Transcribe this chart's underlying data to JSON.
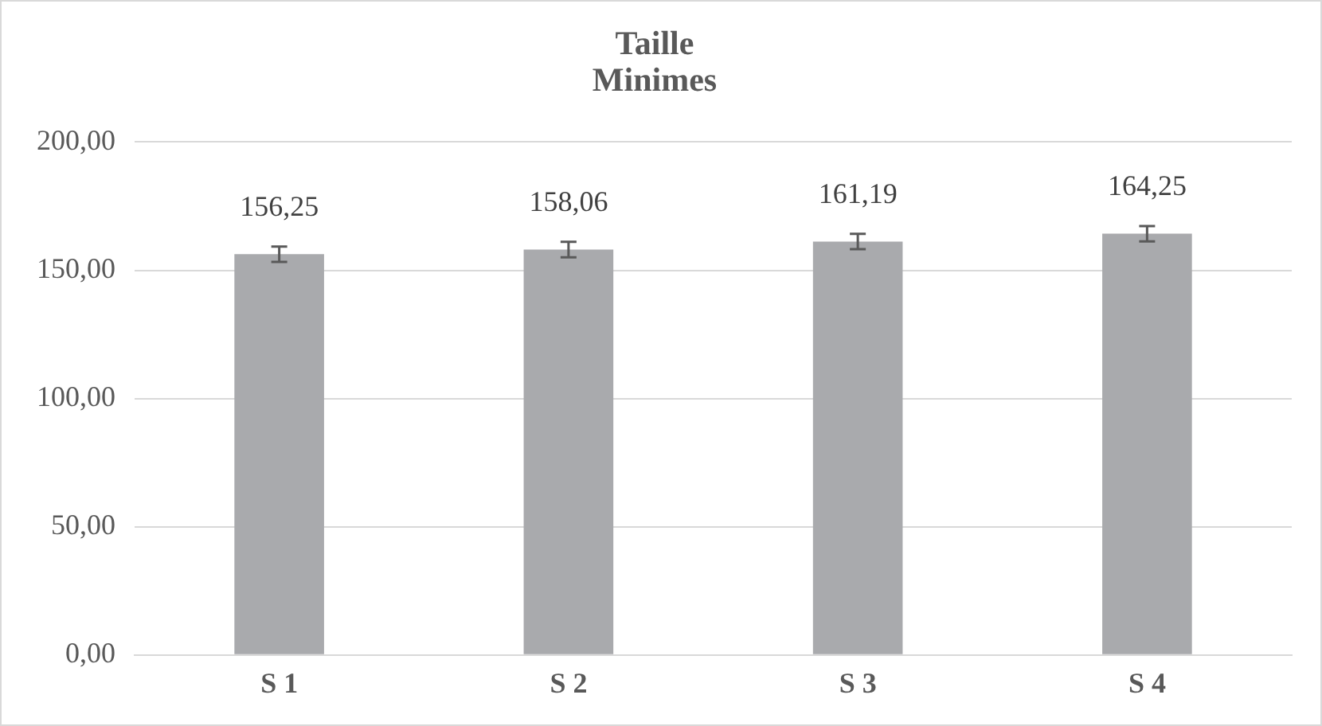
{
  "chart_data": {
    "type": "bar",
    "title": "Taille\nMinimes",
    "categories": [
      "S 1",
      "S 2",
      "S 3",
      "S 4"
    ],
    "values": [
      156.25,
      158.06,
      161.19,
      164.25
    ],
    "value_labels": [
      "156,25",
      "158,06",
      "161,19",
      "164,25"
    ],
    "errors": [
      3,
      3,
      3,
      3
    ],
    "color": "#a9aaad",
    "ylim": [
      0,
      200
    ],
    "yticks": [
      {
        "value": 0,
        "label": "0,00"
      },
      {
        "value": 50,
        "label": "50,00"
      },
      {
        "value": 100,
        "label": "100,00"
      },
      {
        "value": 150,
        "label": "150,00"
      },
      {
        "value": 200,
        "label": "200,00"
      }
    ],
    "grid": "y"
  }
}
